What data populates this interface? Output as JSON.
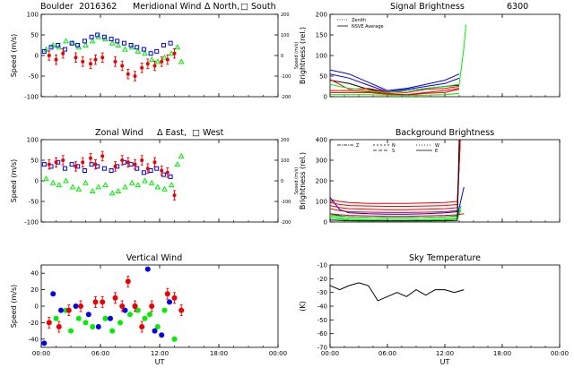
{
  "header": {
    "site": "Boulder",
    "date_code": "2016362",
    "wavelength": "6300"
  },
  "colors": {
    "north_east": "#00ee00",
    "south_west": "#0000ee",
    "zenith": "#ee0000",
    "black": "#000000"
  },
  "chart_data": [
    {
      "id": "meridional",
      "type": "scatter",
      "title": "Meridional Wind",
      "legend_text": [
        "Δ North,",
        "□ South"
      ],
      "ylabel": "Speed (m/s)",
      "y2label": "Speed (m/s)",
      "xlim": [
        0,
        24
      ],
      "ylim": [
        -100,
        100
      ],
      "y2lim": [
        -200,
        200
      ],
      "xticks": [
        "",
        "",
        "",
        "",
        ""
      ],
      "yticks": [
        -100,
        -50,
        0,
        50,
        100
      ],
      "y2ticks": [
        -200,
        -100,
        0,
        100,
        200
      ],
      "series": [
        {
          "color": "#00ee00",
          "marker": "triangle",
          "x": [
            0.5,
            1.2,
            1.8,
            2.5,
            3.2,
            3.8,
            4.5,
            5.2,
            5.8,
            6.5,
            7.2,
            7.8,
            8.5,
            9.2,
            9.8,
            10.5,
            11.2,
            11.8,
            12.5,
            13.2,
            13.8,
            14.2
          ],
          "y": [
            15,
            25,
            20,
            35,
            30,
            20,
            25,
            35,
            45,
            40,
            30,
            25,
            15,
            20,
            10,
            5,
            -10,
            -15,
            -5,
            5,
            20,
            -15
          ]
        },
        {
          "color": "#0000ee",
          "marker": "square",
          "x": [
            0.3,
            1.0,
            1.7,
            2.4,
            3.1,
            3.7,
            4.4,
            5.1,
            5.7,
            6.4,
            7.1,
            7.7,
            8.4,
            9.1,
            9.7,
            10.4,
            11.1,
            11.7,
            12.4,
            13.1
          ],
          "y": [
            10,
            20,
            25,
            15,
            30,
            25,
            35,
            45,
            50,
            45,
            40,
            35,
            30,
            25,
            20,
            15,
            5,
            10,
            25,
            30
          ]
        },
        {
          "color": "#ee0000",
          "marker": "errorbar",
          "x": [
            0.8,
            1.5,
            2.2,
            3.5,
            4.2,
            5.0,
            5.5,
            6.2,
            7.5,
            8.2,
            8.8,
            9.5,
            10.2,
            10.8,
            11.5,
            12.2,
            12.8,
            13.5
          ],
          "y": [
            0,
            -10,
            5,
            -5,
            -15,
            -20,
            -10,
            -5,
            -15,
            -25,
            -45,
            -50,
            -30,
            -20,
            -25,
            -15,
            -10,
            5
          ]
        }
      ]
    },
    {
      "id": "signal",
      "type": "line",
      "title": "Signal Brightness",
      "ylabel": "Brightness (rel.)",
      "xlim": [
        0,
        24
      ],
      "ylim": [
        0,
        200
      ],
      "xticks": [
        "",
        "",
        "",
        "",
        ""
      ],
      "yticks": [
        0,
        50,
        100,
        150,
        200
      ],
      "legend": [
        "Zenith",
        "NSVE Average"
      ],
      "series": [
        {
          "color": "#0000ee",
          "x": [
            0,
            2,
            4,
            6,
            8,
            10,
            12,
            13.5
          ],
          "y": [
            65,
            55,
            35,
            15,
            20,
            30,
            40,
            55
          ]
        },
        {
          "color": "#0000ee",
          "x": [
            0,
            2,
            4,
            6,
            8,
            10,
            12,
            13.5
          ],
          "y": [
            55,
            45,
            28,
            12,
            18,
            25,
            32,
            45
          ]
        },
        {
          "color": "#000000",
          "x": [
            0,
            2,
            4,
            6,
            8,
            10,
            12,
            13.5
          ],
          "y": [
            40,
            32,
            18,
            10,
            15,
            20,
            25,
            28
          ]
        },
        {
          "color": "#ee0000",
          "x": [
            0,
            2,
            4,
            6,
            8,
            10,
            12,
            13.5
          ],
          "y": [
            42,
            18,
            20,
            12,
            10,
            18,
            20,
            25
          ]
        },
        {
          "color": "#ee0000",
          "x": [
            0,
            2,
            4,
            6,
            8,
            10,
            12,
            13.5
          ],
          "y": [
            15,
            15,
            12,
            8,
            5,
            10,
            15,
            20
          ]
        },
        {
          "color": "#ee0000",
          "x": [
            0,
            2,
            4,
            6,
            8,
            10,
            12,
            13.5
          ],
          "y": [
            10,
            10,
            10,
            6,
            4,
            8,
            10,
            18
          ]
        },
        {
          "color": "#00ee00",
          "x": [
            0,
            2,
            4,
            6,
            8,
            10,
            12,
            13.5,
            14,
            14.2
          ],
          "y": [
            30,
            20,
            15,
            10,
            15,
            20,
            25,
            30,
            120,
            175
          ]
        },
        {
          "color": "#00ee00",
          "x": [
            0,
            2,
            4,
            6,
            8,
            10,
            12,
            13.5
          ],
          "y": [
            5,
            5,
            5,
            4,
            3,
            4,
            5,
            8
          ]
        }
      ]
    },
    {
      "id": "zonal",
      "type": "scatter",
      "title": "Zonal Wind",
      "legend_text": [
        "Δ East,",
        "□ West"
      ],
      "ylabel": "Speed (m/s)",
      "y2label": "Speed (m/s)",
      "xlim": [
        0,
        24
      ],
      "ylim": [
        -100,
        100
      ],
      "y2lim": [
        -200,
        200
      ],
      "xticks": [
        "",
        "",
        "",
        "",
        ""
      ],
      "yticks": [
        -100,
        -50,
        0,
        50,
        100
      ],
      "y2ticks": [
        -200,
        -100,
        0,
        100,
        200
      ],
      "series": [
        {
          "color": "#00ee00",
          "marker": "triangle",
          "x": [
            0.5,
            1.2,
            1.8,
            2.5,
            3.2,
            3.8,
            4.5,
            5.2,
            5.8,
            6.5,
            7.2,
            7.8,
            8.5,
            9.2,
            9.8,
            10.5,
            11.2,
            11.8,
            12.5,
            13.2,
            13.8,
            14.2
          ],
          "y": [
            5,
            -5,
            -10,
            0,
            -15,
            -20,
            -5,
            -25,
            -15,
            -10,
            -30,
            -25,
            -15,
            -5,
            -10,
            0,
            -5,
            -15,
            -20,
            -10,
            40,
            60
          ]
        },
        {
          "color": "#0000ee",
          "marker": "square",
          "x": [
            0.3,
            1.0,
            1.7,
            2.4,
            3.1,
            3.7,
            4.4,
            5.1,
            5.7,
            6.4,
            7.1,
            7.7,
            8.4,
            9.1,
            9.7,
            10.4,
            11.1,
            11.7,
            12.4,
            13.1
          ],
          "y": [
            40,
            35,
            45,
            30,
            40,
            35,
            25,
            40,
            35,
            30,
            25,
            35,
            45,
            40,
            30,
            20,
            25,
            30,
            15,
            10
          ]
        },
        {
          "color": "#ee0000",
          "marker": "errorbar",
          "x": [
            0.8,
            1.5,
            2.2,
            3.5,
            4.2,
            5.0,
            5.5,
            6.2,
            7.5,
            8.2,
            8.8,
            9.5,
            10.2,
            10.8,
            11.5,
            12.2,
            12.8,
            13.5
          ],
          "y": [
            40,
            45,
            50,
            35,
            45,
            55,
            40,
            60,
            35,
            50,
            45,
            40,
            50,
            30,
            45,
            25,
            20,
            -35
          ]
        }
      ]
    },
    {
      "id": "background",
      "type": "line",
      "title": "Background Brightness",
      "ylabel": "Brightness (rel.)",
      "xlim": [
        0,
        24
      ],
      "ylim": [
        0,
        400
      ],
      "xticks": [
        "",
        "",
        "",
        "",
        ""
      ],
      "yticks": [
        0,
        100,
        200,
        300,
        400
      ],
      "legend": [
        "Z",
        "N",
        "S",
        "W",
        "E"
      ],
      "series": [
        {
          "color": "#0000ee",
          "x": [
            0,
            1,
            2,
            4,
            6,
            8,
            10,
            12,
            13.3,
            13.6,
            13.8
          ],
          "y": [
            120,
            60,
            45,
            40,
            38,
            38,
            40,
            45,
            50,
            400,
            400
          ]
        },
        {
          "color": "#ee0000",
          "x": [
            0,
            1,
            2,
            4,
            6,
            8,
            10,
            12,
            13.3,
            13.6
          ],
          "y": [
            110,
            100,
            95,
            90,
            90,
            90,
            92,
            95,
            100,
            400
          ]
        },
        {
          "color": "#ee0000",
          "x": [
            0,
            1,
            2,
            4,
            6,
            8,
            10,
            12,
            13.3,
            13.6
          ],
          "y": [
            95,
            85,
            80,
            78,
            76,
            76,
            78,
            80,
            85,
            400
          ]
        },
        {
          "color": "#ee0000",
          "x": [
            0,
            1,
            2,
            4,
            6,
            8,
            10,
            12,
            13.3,
            13.6
          ],
          "y": [
            80,
            70,
            65,
            62,
            60,
            60,
            62,
            65,
            70,
            400
          ]
        },
        {
          "color": "#ee0000",
          "x": [
            0,
            1,
            2,
            4,
            6,
            8,
            10,
            12,
            13.3,
            13.6
          ],
          "y": [
            65,
            55,
            50,
            48,
            46,
            46,
            48,
            50,
            55,
            400
          ]
        },
        {
          "color": "#00ee00",
          "x": [
            0,
            1,
            2,
            4,
            6,
            8,
            10,
            12,
            13.3,
            13.7
          ],
          "y": [
            30,
            20,
            15,
            12,
            10,
            10,
            12,
            15,
            20,
            80
          ]
        },
        {
          "color": "#00ee00",
          "x": [
            0,
            1,
            2,
            4,
            6,
            8,
            10,
            12,
            13.3,
            13.7
          ],
          "y": [
            20,
            15,
            10,
            8,
            6,
            6,
            8,
            10,
            15,
            60
          ]
        },
        {
          "color": "#0000ee",
          "x": [
            0,
            1,
            2,
            4,
            6,
            8,
            10,
            12,
            13.3,
            14
          ],
          "y": [
            40,
            30,
            25,
            22,
            20,
            20,
            22,
            25,
            30,
            170
          ]
        },
        {
          "color": "#ee0000",
          "x": [
            0,
            1,
            2,
            4,
            6,
            8,
            10,
            12,
            13.3,
            14
          ],
          "y": [
            40,
            35,
            32,
            30,
            28,
            28,
            30,
            32,
            35,
            40
          ]
        },
        {
          "color": "#00ee00",
          "x": [
            0,
            1,
            2,
            4,
            6,
            8,
            10,
            12,
            13.3
          ],
          "y": [
            35,
            28,
            25,
            22,
            20,
            20,
            22,
            25,
            28
          ]
        },
        {
          "color": "#000000",
          "x": [
            0,
            1,
            2,
            4,
            6,
            8,
            10,
            12,
            13.3,
            13.5
          ],
          "y": [
            10,
            8,
            6,
            5,
            5,
            5,
            5,
            6,
            8,
            400
          ]
        }
      ]
    },
    {
      "id": "vertical",
      "type": "scatter",
      "title": "Vertical Wind",
      "ylabel": "Speed (m/s)",
      "xlabel": "UT",
      "xlim": [
        0,
        24
      ],
      "ylim": [
        -50,
        50
      ],
      "xticks": [
        "00:00",
        "06:00",
        "12:00",
        "18:00",
        "00:00"
      ],
      "yticks": [
        -40,
        -20,
        0,
        20,
        40
      ],
      "series": [
        {
          "color": "#00ee00",
          "marker": "dot",
          "x": [
            1.5,
            2.5,
            3.0,
            3.8,
            4.5,
            5.2,
            6.5,
            7.2,
            8.0,
            9.0,
            9.8,
            10.5,
            11.0,
            11.8,
            12.5,
            13.5
          ],
          "y": [
            -15,
            -5,
            -30,
            -15,
            -20,
            -25,
            -15,
            -30,
            -20,
            -10,
            -5,
            -15,
            -10,
            -25,
            -5,
            -40
          ]
        },
        {
          "color": "#0000ee",
          "marker": "dot",
          "x": [
            0.3,
            1.2,
            2.0,
            3.5,
            4.8,
            5.8,
            7.0,
            8.5,
            9.5,
            10.8,
            11.5,
            12.2,
            13.0
          ],
          "y": [
            -45,
            15,
            -5,
            0,
            -10,
            -25,
            -15,
            -5,
            0,
            45,
            -30,
            -35,
            5
          ]
        },
        {
          "color": "#ee0000",
          "marker": "errorbar",
          "x": [
            0.8,
            1.8,
            2.8,
            4.0,
            5.5,
            6.2,
            7.5,
            8.2,
            8.8,
            9.5,
            10.2,
            11.2,
            12.8,
            13.5,
            14.2
          ],
          "y": [
            -20,
            -25,
            -5,
            0,
            5,
            5,
            10,
            0,
            30,
            0,
            -25,
            0,
            15,
            10,
            -5
          ]
        }
      ]
    },
    {
      "id": "sky",
      "type": "line",
      "title": "Sky Temperature",
      "ylabel": "(K)",
      "xlabel": "UT",
      "xlim": [
        0,
        24
      ],
      "ylim": [
        -70,
        -10
      ],
      "xticks": [
        "00:00",
        "06:00",
        "12:00",
        "18:00",
        "00:00"
      ],
      "yticks": [
        -70,
        -60,
        -50,
        -40,
        -30,
        -20,
        -10
      ],
      "series": [
        {
          "color": "#000000",
          "x": [
            0,
            1,
            2,
            3,
            4,
            5,
            6,
            7,
            8,
            9,
            10,
            11,
            12,
            13,
            14
          ],
          "y": [
            -25,
            -28,
            -25,
            -23,
            -25,
            -36,
            -33,
            -30,
            -33,
            -28,
            -32,
            -28,
            -28,
            -30,
            -28
          ]
        }
      ]
    }
  ]
}
